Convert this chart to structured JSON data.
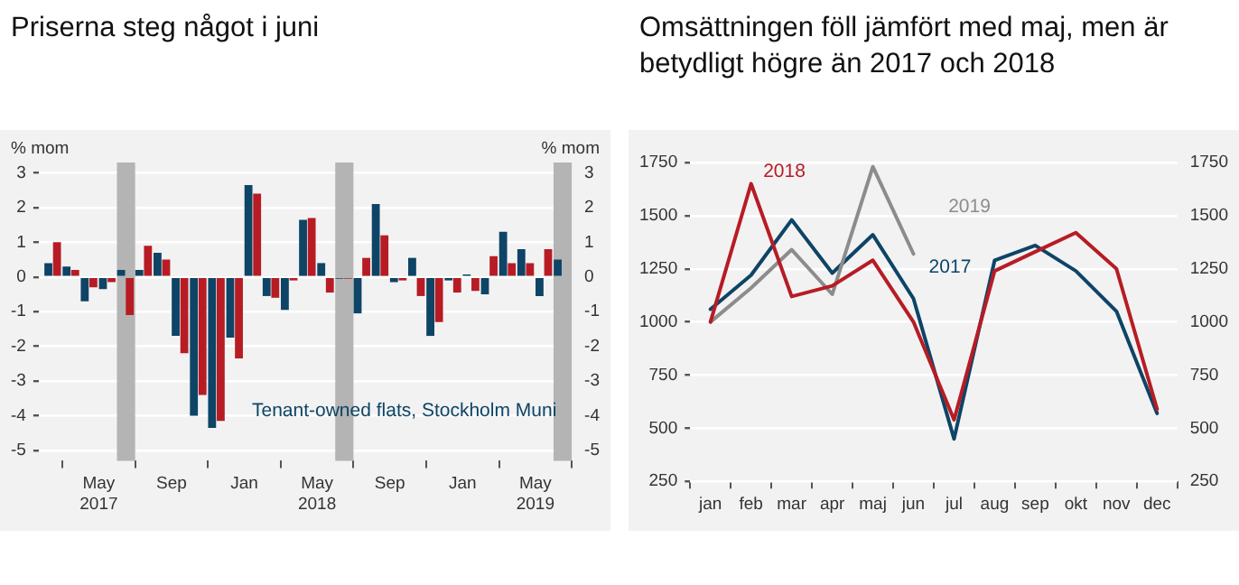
{
  "chart_data": [
    {
      "type": "bar",
      "title": "Priserna steg något i juni",
      "ylabel": "% mom",
      "y2label": "% mom",
      "x": [
        "2017-02-15",
        "2017-03-15",
        "2017-04-15",
        "2017-05-15",
        "2017-06-15",
        "2017-07-15",
        "2017-08-15",
        "2017-09-15",
        "2017-10-15",
        "2017-11-15",
        "2017-12-15",
        "2018-01-15",
        "2018-02-15",
        "2018-03-15",
        "2018-04-15",
        "2018-05-15",
        "2018-06-15",
        "2018-07-15",
        "2018-08-15",
        "2018-09-15",
        "2018-10-15",
        "2018-11-15",
        "2018-12-15",
        "2019-01-15",
        "2019-02-15",
        "2019-03-15",
        "2019-04-15",
        "2019-05-15",
        "2019-06-15"
      ],
      "series": [
        {
          "name": "Tenant-owned flats, Stockholm Muni",
          "color": "#0e4466",
          "values": [
            0.4,
            0.3,
            -0.7,
            -0.35,
            0.2,
            0.2,
            0.7,
            -1.7,
            -4.0,
            -4.35,
            -1.75,
            2.65,
            -0.55,
            -0.95,
            1.65,
            0.4,
            -0.05,
            -1.05,
            2.1,
            -0.15,
            0.55,
            -1.7,
            -0.1,
            0.07,
            -0.5,
            1.3,
            0.8,
            -0.55,
            0.5
          ]
        },
        {
          "color": "#b71c24",
          "values": [
            1.0,
            0.2,
            -0.3,
            -0.15,
            -1.1,
            0.9,
            0.5,
            -2.2,
            -3.4,
            -4.15,
            -2.35,
            2.4,
            -0.6,
            -0.1,
            1.7,
            -0.45,
            -0.05,
            0.55,
            1.2,
            -0.1,
            -0.55,
            -1.3,
            -0.45,
            -0.4,
            0.6,
            0.4,
            0.4,
            0.8,
            null
          ]
        }
      ],
      "xlim": [
        "2017-01-22",
        "2019-07-01"
      ],
      "xticks": [
        {
          "value": "2017-05-01",
          "label": "May 2017"
        },
        {
          "value": "2017-09-01",
          "label": "Sep"
        },
        {
          "value": "2018-01-01",
          "label": "Jan"
        },
        {
          "value": "2018-05-01",
          "label": "May 2018"
        },
        {
          "value": "2018-09-01",
          "label": "Sep"
        },
        {
          "value": "2019-01-01",
          "label": "Jan"
        },
        {
          "value": "2019-05-01",
          "label": "May 2019"
        }
      ],
      "ylim": [
        -5.3,
        3.3
      ],
      "yticks": [
        -5,
        -4,
        -3,
        -2,
        -1,
        0,
        1,
        2,
        3
      ],
      "y2lim": [
        -5.3,
        3.3
      ],
      "y2ticks": [
        -5,
        -4,
        -3,
        -2,
        -1,
        0,
        1,
        2,
        3
      ],
      "bands": [
        {
          "axis": "x",
          "from": "2017-06-01",
          "to": "2017-07-01",
          "color": "#b4b4b4"
        },
        {
          "axis": "x",
          "from": "2018-06-01",
          "to": "2018-07-01",
          "color": "#b4b4b4"
        },
        {
          "axis": "x",
          "from": "2019-06-01",
          "to": "2019-07-01",
          "color": "#b4b4b4"
        }
      ],
      "grid": "y",
      "legend": false
    },
    {
      "type": "line",
      "title": "Omsättningen föll jämfört med maj, men är betydligt högre än 2017 och 2018",
      "categories": [
        "jan",
        "feb",
        "mar",
        "apr",
        "maj",
        "jun",
        "jul",
        "aug",
        "sep",
        "okt",
        "nov",
        "dec"
      ],
      "series": [
        {
          "name": "2018",
          "color": "#b71c24",
          "values": [
            1000,
            1650,
            1120,
            1170,
            1290,
            1000,
            540,
            1240,
            1330,
            1420,
            1250,
            590
          ]
        },
        {
          "name": "2019",
          "color": "#8c8c8c",
          "values": [
            1000,
            1160,
            1340,
            1130,
            1730,
            1320,
            null,
            null,
            null,
            null,
            null,
            null
          ]
        },
        {
          "name": "2017",
          "color": "#0e4466",
          "values": [
            1060,
            1220,
            1480,
            1230,
            1410,
            1110,
            450,
            1290,
            1360,
            1240,
            1050,
            570
          ]
        }
      ],
      "ylim": [
        250,
        1750
      ],
      "yticks": [
        250,
        500,
        750,
        1000,
        1250,
        1500,
        1750
      ],
      "y2lim": [
        250,
        1750
      ],
      "y2ticks": [
        250,
        500,
        750,
        1000,
        1250,
        1500,
        1750
      ],
      "grid": "y",
      "legend": false,
      "marker": "none",
      "line_style": "solid"
    }
  ]
}
